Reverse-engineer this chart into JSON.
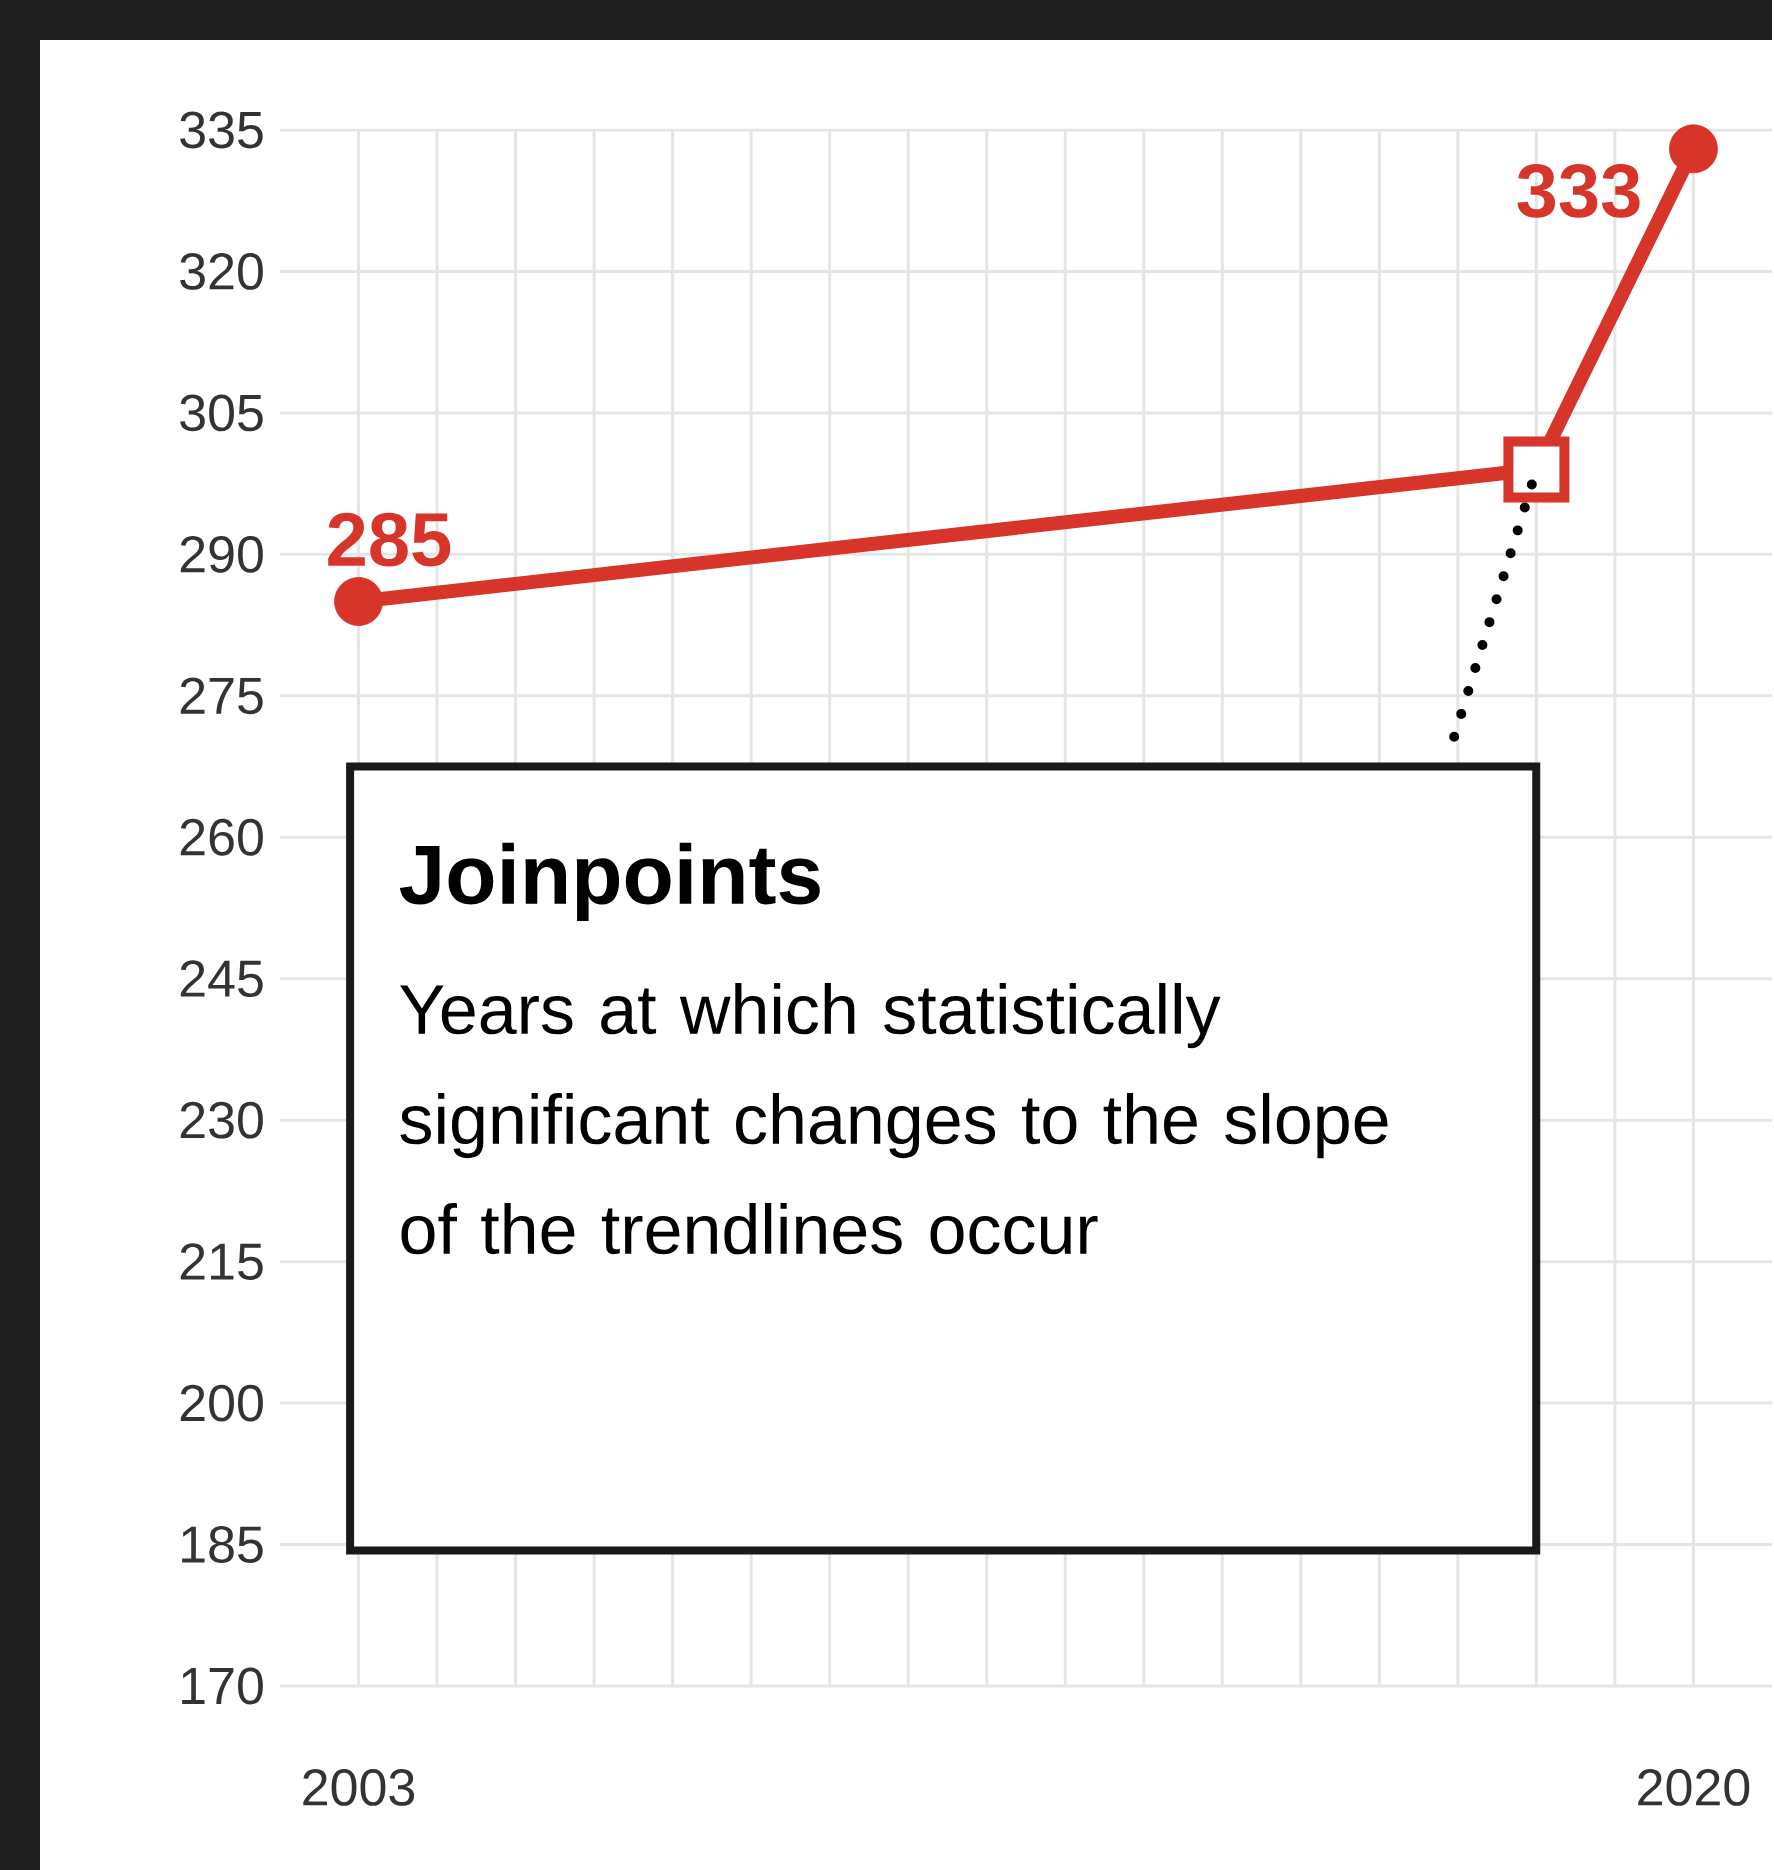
{
  "chart_data": {
    "type": "line",
    "xlim": [
      2002,
      2021
    ],
    "ylim": [
      170,
      335
    ],
    "xticks": [
      {
        "value": 2003,
        "label": "2003"
      },
      {
        "value": 2004,
        "label": null
      },
      {
        "value": 2005,
        "label": null
      },
      {
        "value": 2006,
        "label": null
      },
      {
        "value": 2007,
        "label": null
      },
      {
        "value": 2008,
        "label": null
      },
      {
        "value": 2009,
        "label": null
      },
      {
        "value": 2010,
        "label": null
      },
      {
        "value": 2011,
        "label": null
      },
      {
        "value": 2012,
        "label": null
      },
      {
        "value": 2013,
        "label": null
      },
      {
        "value": 2014,
        "label": null
      },
      {
        "value": 2015,
        "label": null
      },
      {
        "value": 2016,
        "label": null
      },
      {
        "value": 2017,
        "label": null
      },
      {
        "value": 2018,
        "label": null
      },
      {
        "value": 2019,
        "label": null
      },
      {
        "value": 2020,
        "label": "2020"
      }
    ],
    "yticks": [
      170,
      185,
      200,
      215,
      230,
      245,
      260,
      275,
      290,
      305,
      320,
      335
    ],
    "grid": true,
    "series": [
      {
        "type": "line",
        "color": "#d7342a",
        "x": [
          2003,
          2018,
          2020
        ],
        "values": [
          285,
          299,
          333
        ],
        "marker": "none"
      },
      {
        "type": "scatter",
        "color": "#d7342a",
        "x": [
          2003,
          2020
        ],
        "values": [
          285,
          333
        ],
        "marker": "circle",
        "value_labels": [
          "285",
          "333"
        ]
      },
      {
        "type": "scatter",
        "color": "#d7342a",
        "x": [
          2018
        ],
        "values": [
          299
        ],
        "marker": "square"
      }
    ],
    "annotations": [
      "Joinpoints",
      "Years at which statistically significant changes to the slope of the trendlines occur"
    ]
  }
}
